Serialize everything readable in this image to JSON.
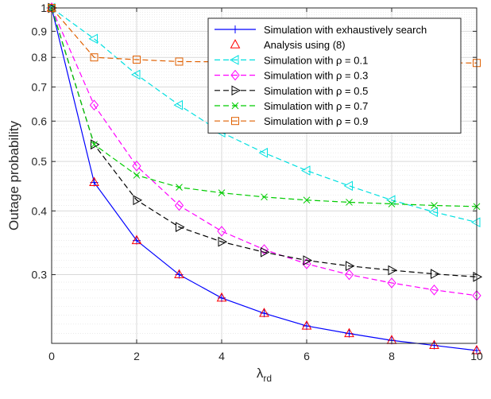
{
  "chart_data": {
    "type": "line",
    "title": "",
    "xlabel": "λ",
    "xlabel_sub": "rd",
    "ylabel": "Outage probability",
    "xlim": [
      0,
      10
    ],
    "ylim": [
      0.22,
      1.0
    ],
    "yscale": "log",
    "grid": true,
    "minor_grid": true,
    "legend_position": "top-right",
    "xticks": [
      "0",
      "2",
      "4",
      "6",
      "8",
      "10"
    ],
    "yticks": [
      {
        "value": 0.3,
        "label": "0.3"
      },
      {
        "value": 0.4,
        "label": "0.4"
      },
      {
        "value": 0.5,
        "label": "0.5"
      },
      {
        "value": 0.6,
        "label": "0.6"
      },
      {
        "value": 0.7,
        "label": "0.7"
      },
      {
        "value": 0.8,
        "label": "0.8"
      },
      {
        "value": 0.9,
        "label": "0.9"
      },
      {
        "value": 1.0,
        "label": "1"
      }
    ],
    "series": [
      {
        "name": "Simulation with exhaustively search",
        "color": "#0000ff",
        "line": "solid",
        "marker": "plus",
        "x": [
          0,
          1,
          2,
          3,
          4,
          5,
          6,
          7,
          8,
          9,
          10
        ],
        "y": [
          1.0,
          0.455,
          0.35,
          0.3,
          0.27,
          0.252,
          0.238,
          0.23,
          0.223,
          0.218,
          0.213
        ]
      },
      {
        "name": "Analysis using (8)",
        "color": "#ff0000",
        "line": "none",
        "marker": "triangle-up",
        "x": [
          0,
          1,
          2,
          3,
          4,
          5,
          6,
          7,
          8,
          9,
          10
        ],
        "y": [
          1.0,
          0.455,
          0.35,
          0.3,
          0.27,
          0.252,
          0.238,
          0.23,
          0.223,
          0.218,
          0.213
        ]
      },
      {
        "name": "Simulation with ρ = 0.1",
        "color": "#00e0e0",
        "line": "dashed",
        "marker": "triangle-left",
        "x": [
          0,
          1,
          2,
          3,
          4,
          5,
          6,
          7,
          8,
          9,
          10
        ],
        "y": [
          1.0,
          0.87,
          0.74,
          0.645,
          0.57,
          0.52,
          0.48,
          0.448,
          0.42,
          0.398,
          0.38
        ]
      },
      {
        "name": "Simulation with ρ = 0.3",
        "color": "#ff00ff",
        "line": "dashed",
        "marker": "diamond",
        "x": [
          0,
          1,
          2,
          3,
          4,
          5,
          6,
          7,
          8,
          9,
          10
        ],
        "y": [
          1.0,
          0.645,
          0.49,
          0.41,
          0.365,
          0.336,
          0.315,
          0.3,
          0.289,
          0.28,
          0.273
        ]
      },
      {
        "name": "Simulation with ρ = 0.5",
        "color": "#000000",
        "line": "dashed",
        "marker": "triangle-right",
        "x": [
          0,
          1,
          2,
          3,
          4,
          5,
          6,
          7,
          8,
          9,
          10
        ],
        "y": [
          1.0,
          0.54,
          0.42,
          0.372,
          0.348,
          0.332,
          0.32,
          0.312,
          0.306,
          0.301,
          0.297
        ]
      },
      {
        "name": "Simulation with ρ = 0.7",
        "color": "#00cc00",
        "line": "dashed",
        "marker": "x",
        "x": [
          0,
          1,
          2,
          3,
          4,
          5,
          6,
          7,
          8,
          9,
          10
        ],
        "y": [
          1.0,
          0.54,
          0.47,
          0.445,
          0.434,
          0.426,
          0.42,
          0.416,
          0.413,
          0.41,
          0.408
        ]
      },
      {
        "name": "Simulation with ρ = 0.9",
        "color": "#e06000",
        "line": "dashed",
        "marker": "square",
        "x": [
          0,
          1,
          2,
          3,
          10
        ],
        "y": [
          1.0,
          0.8,
          0.792,
          0.785,
          0.78
        ]
      }
    ]
  }
}
